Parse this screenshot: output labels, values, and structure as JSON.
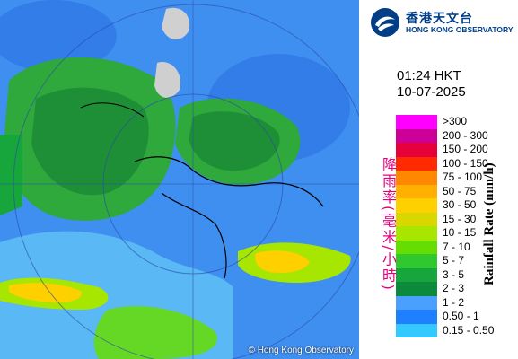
{
  "logo": {
    "name_zh": "香港天文台",
    "name_en": "HONG KONG OBSERVATORY"
  },
  "timestamp": {
    "time": "01:24 HKT",
    "date": "10-07-2025"
  },
  "legend": {
    "label_zh": "降雨率(毫米/小時)",
    "label_en": "Rainfall Rate (mm/h)",
    "items": [
      {
        "range": ">300",
        "color": "#ff00ff"
      },
      {
        "range": "200 - 300",
        "color": "#cc0099"
      },
      {
        "range": "150 - 200",
        "color": "#e6003c"
      },
      {
        "range": "100 - 150",
        "color": "#ff2a00"
      },
      {
        "range": "75 - 100",
        "color": "#ff8800"
      },
      {
        "range": "50 - 75",
        "color": "#ffb000"
      },
      {
        "range": "30 - 50",
        "color": "#ffd000"
      },
      {
        "range": "15 - 30",
        "color": "#d8d800"
      },
      {
        "range": "10 - 15",
        "color": "#a6e600"
      },
      {
        "range": "7 - 10",
        "color": "#66dd00"
      },
      {
        "range": "5 - 7",
        "color": "#2fc82f"
      },
      {
        "range": "3 - 5",
        "color": "#17a63c"
      },
      {
        "range": "2 - 3",
        "color": "#0a8a3a"
      },
      {
        "range": "1 - 2",
        "color": "#4aa0ff"
      },
      {
        "range": "0.50 - 1",
        "color": "#1e7fff"
      },
      {
        "range": "0.15 - 0.50",
        "color": "#33c8ff"
      }
    ]
  },
  "map": {
    "copyright": "© Hong Kong Observatory"
  }
}
